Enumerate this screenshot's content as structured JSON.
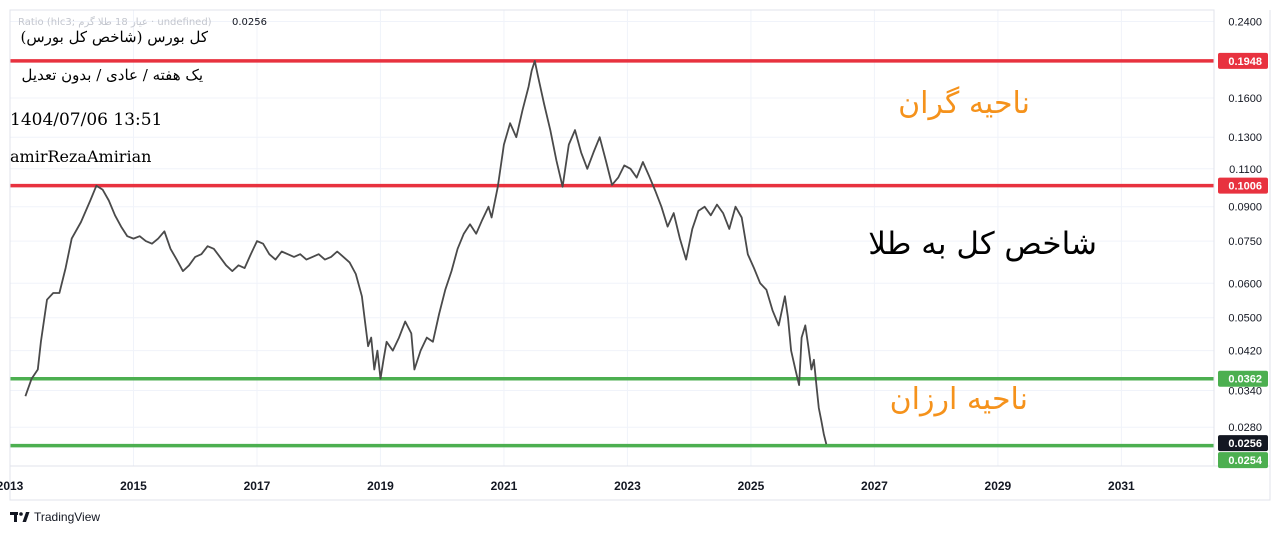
{
  "legend": {
    "symbol_line": "Ratio (hlc3; عیار 18 طلا گرم · undefined)",
    "last_value": "0.0256",
    "title": "کل بورس (شاخص کل بورس)",
    "subtitle": "یک هفته / عادی / بدون تعدیل",
    "datetime": "1404/07/06 13:51",
    "author": "amirRezaAmirian"
  },
  "annotations": {
    "expensive_zone": "ناحیه گران",
    "cheap_zone": "ناحیه ارزان",
    "main_label": "شاخص کل به طلا"
  },
  "branding": {
    "name": "TradingView"
  },
  "colors": {
    "line": "#4a4a4a",
    "resistance": "#e8323f",
    "support": "#4caf50",
    "last_badge": "#131722",
    "annotation_orange": "#f5921b",
    "grid": "#f0f3fa"
  },
  "chart_data": {
    "type": "line",
    "title": "",
    "xlabel": "",
    "ylabel": "",
    "scale": "log",
    "xlim": [
      2013.0,
      2032.5
    ],
    "ylim": [
      0.0228,
      0.255
    ],
    "x_ticks": [
      "2013",
      "2015",
      "2017",
      "2019",
      "2021",
      "2023",
      "2025",
      "2027",
      "2029",
      "2031"
    ],
    "y_ticks": [
      "0.2400",
      "0.1600",
      "0.1300",
      "0.1100",
      "0.0900",
      "0.0750",
      "0.0600",
      "0.0500",
      "0.0420",
      "0.0340",
      "0.0280"
    ],
    "grid": true,
    "horizontal_lines": [
      {
        "value": 0.1948,
        "label": "0.1948",
        "kind": "resistance"
      },
      {
        "value": 0.1006,
        "label": "0.1006",
        "kind": "resistance"
      },
      {
        "value": 0.0362,
        "label": "0.0362",
        "kind": "support"
      },
      {
        "value": 0.0254,
        "label": "0.0254",
        "kind": "support"
      }
    ],
    "last_price": {
      "value": 0.0256,
      "label": "0.0256"
    },
    "series": [
      {
        "values": [
          [
            2013.25,
            0.033
          ],
          [
            2013.35,
            0.0362
          ],
          [
            2013.45,
            0.038
          ],
          [
            2013.5,
            0.044
          ],
          [
            2013.6,
            0.055
          ],
          [
            2013.7,
            0.057
          ],
          [
            2013.8,
            0.057
          ],
          [
            2013.9,
            0.065
          ],
          [
            2014.0,
            0.076
          ],
          [
            2014.15,
            0.083
          ],
          [
            2014.3,
            0.093
          ],
          [
            2014.4,
            0.1006
          ],
          [
            2014.5,
            0.0985
          ],
          [
            2014.6,
            0.093
          ],
          [
            2014.7,
            0.086
          ],
          [
            2014.8,
            0.081
          ],
          [
            2014.9,
            0.077
          ],
          [
            2015.0,
            0.076
          ],
          [
            2015.1,
            0.077
          ],
          [
            2015.2,
            0.075
          ],
          [
            2015.3,
            0.074
          ],
          [
            2015.4,
            0.076
          ],
          [
            2015.5,
            0.079
          ],
          [
            2015.6,
            0.072
          ],
          [
            2015.7,
            0.068
          ],
          [
            2015.8,
            0.064
          ],
          [
            2015.9,
            0.066
          ],
          [
            2016.0,
            0.069
          ],
          [
            2016.1,
            0.07
          ],
          [
            2016.2,
            0.073
          ],
          [
            2016.3,
            0.072
          ],
          [
            2016.4,
            0.069
          ],
          [
            2016.5,
            0.066
          ],
          [
            2016.6,
            0.064
          ],
          [
            2016.7,
            0.066
          ],
          [
            2016.8,
            0.065
          ],
          [
            2016.9,
            0.07
          ],
          [
            2017.0,
            0.075
          ],
          [
            2017.1,
            0.074
          ],
          [
            2017.2,
            0.07
          ],
          [
            2017.3,
            0.068
          ],
          [
            2017.4,
            0.071
          ],
          [
            2017.5,
            0.07
          ],
          [
            2017.6,
            0.069
          ],
          [
            2017.7,
            0.07
          ],
          [
            2017.8,
            0.068
          ],
          [
            2017.9,
            0.069
          ],
          [
            2018.0,
            0.07
          ],
          [
            2018.1,
            0.068
          ],
          [
            2018.2,
            0.069
          ],
          [
            2018.3,
            0.071
          ],
          [
            2018.4,
            0.069
          ],
          [
            2018.5,
            0.067
          ],
          [
            2018.6,
            0.063
          ],
          [
            2018.7,
            0.056
          ],
          [
            2018.75,
            0.049
          ],
          [
            2018.8,
            0.043
          ],
          [
            2018.85,
            0.045
          ],
          [
            2018.9,
            0.038
          ],
          [
            2018.95,
            0.042
          ],
          [
            2019.0,
            0.0362
          ],
          [
            2019.05,
            0.04
          ],
          [
            2019.1,
            0.044
          ],
          [
            2019.2,
            0.042
          ],
          [
            2019.3,
            0.045
          ],
          [
            2019.4,
            0.049
          ],
          [
            2019.5,
            0.046
          ],
          [
            2019.55,
            0.038
          ],
          [
            2019.65,
            0.042
          ],
          [
            2019.75,
            0.045
          ],
          [
            2019.85,
            0.044
          ],
          [
            2019.95,
            0.051
          ],
          [
            2020.05,
            0.058
          ],
          [
            2020.15,
            0.064
          ],
          [
            2020.25,
            0.072
          ],
          [
            2020.35,
            0.078
          ],
          [
            2020.45,
            0.082
          ],
          [
            2020.55,
            0.078
          ],
          [
            2020.65,
            0.084
          ],
          [
            2020.75,
            0.09
          ],
          [
            2020.8,
            0.085
          ],
          [
            2020.9,
            0.1
          ],
          [
            2021.0,
            0.125
          ],
          [
            2021.1,
            0.14
          ],
          [
            2021.2,
            0.13
          ],
          [
            2021.3,
            0.15
          ],
          [
            2021.4,
            0.17
          ],
          [
            2021.45,
            0.185
          ],
          [
            2021.5,
            0.1948
          ],
          [
            2021.55,
            0.18
          ],
          [
            2021.65,
            0.155
          ],
          [
            2021.75,
            0.135
          ],
          [
            2021.85,
            0.115
          ],
          [
            2021.95,
            0.1
          ],
          [
            2022.05,
            0.125
          ],
          [
            2022.15,
            0.135
          ],
          [
            2022.25,
            0.12
          ],
          [
            2022.35,
            0.11
          ],
          [
            2022.45,
            0.12
          ],
          [
            2022.55,
            0.13
          ],
          [
            2022.65,
            0.115
          ],
          [
            2022.75,
            0.101
          ],
          [
            2022.85,
            0.105
          ],
          [
            2022.95,
            0.112
          ],
          [
            2023.05,
            0.11
          ],
          [
            2023.15,
            0.105
          ],
          [
            2023.25,
            0.114
          ],
          [
            2023.35,
            0.106
          ],
          [
            2023.45,
            0.098
          ],
          [
            2023.55,
            0.09
          ],
          [
            2023.65,
            0.081
          ],
          [
            2023.75,
            0.087
          ],
          [
            2023.85,
            0.076
          ],
          [
            2023.95,
            0.068
          ],
          [
            2024.05,
            0.08
          ],
          [
            2024.15,
            0.088
          ],
          [
            2024.25,
            0.09
          ],
          [
            2024.35,
            0.086
          ],
          [
            2024.45,
            0.091
          ],
          [
            2024.55,
            0.087
          ],
          [
            2024.65,
            0.08
          ],
          [
            2024.75,
            0.09
          ],
          [
            2024.85,
            0.085
          ],
          [
            2024.95,
            0.07
          ],
          [
            2025.05,
            0.065
          ],
          [
            2025.15,
            0.06
          ],
          [
            2025.25,
            0.058
          ],
          [
            2025.35,
            0.052
          ],
          [
            2025.45,
            0.048
          ],
          [
            2025.55,
            0.056
          ],
          [
            2025.6,
            0.05
          ],
          [
            2025.65,
            0.042
          ],
          [
            2025.72,
            0.038
          ],
          [
            2025.78,
            0.035
          ],
          [
            2025.82,
            0.045
          ],
          [
            2025.88,
            0.048
          ],
          [
            2025.93,
            0.043
          ],
          [
            2025.98,
            0.038
          ],
          [
            2026.02,
            0.04
          ],
          [
            2026.06,
            0.035
          ],
          [
            2026.1,
            0.031
          ],
          [
            2026.14,
            0.029
          ],
          [
            2026.18,
            0.027
          ],
          [
            2026.22,
            0.0256
          ]
        ]
      }
    ]
  }
}
